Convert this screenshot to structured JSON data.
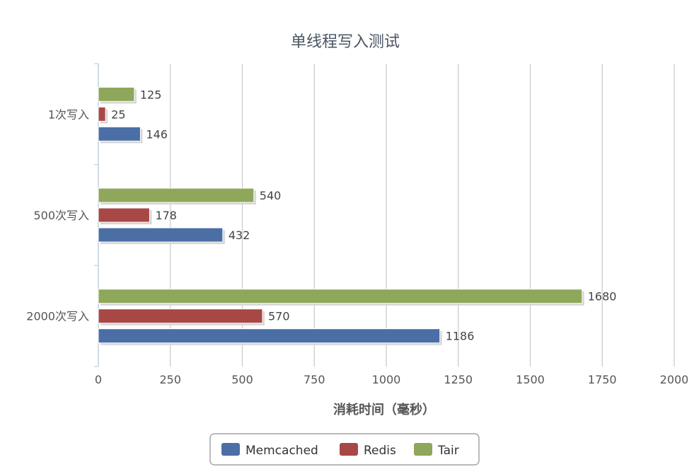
{
  "chart_data": {
    "type": "bar",
    "orientation": "horizontal",
    "title": "单线程写入测试",
    "xlabel": "消耗时间（毫秒）",
    "ylabel": "",
    "categories": [
      "1次写入",
      "500次写入",
      "2000次写入"
    ],
    "series": [
      {
        "name": "Tair",
        "color": "#8fa75a",
        "values": [
          125,
          540,
          1680
        ]
      },
      {
        "name": "Redis",
        "color": "#a84846",
        "values": [
          25,
          178,
          570
        ]
      },
      {
        "name": "Memcached",
        "color": "#4b6fa5",
        "values": [
          146,
          432,
          1186
        ]
      }
    ],
    "xlim": [
      0,
      2000
    ],
    "xticks": [
      0,
      250,
      500,
      750,
      1000,
      1250,
      1500,
      1750,
      2000
    ],
    "xtick_labels": [
      "0",
      "250",
      "500",
      "750",
      "1000",
      "1250",
      "1500",
      "1750",
      "2000"
    ],
    "grid": true,
    "legend": {
      "position": "bottom-center",
      "entries": [
        "Memcached",
        "Redis",
        "Tair"
      ]
    }
  }
}
